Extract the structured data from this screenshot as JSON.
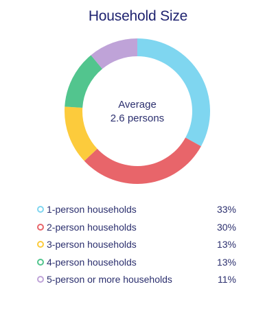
{
  "chart_data": {
    "type": "pie",
    "title": "Household Size",
    "center_label_line1": "Average",
    "center_label_line2": "2.6 persons",
    "slices": [
      {
        "label": "1-person households",
        "value": 33,
        "display": "33%",
        "color": "#7fd6f0"
      },
      {
        "label": "2-person households",
        "value": 30,
        "display": "30%",
        "color": "#e8656a"
      },
      {
        "label": "3-person households",
        "value": 13,
        "display": "13%",
        "color": "#fccb3c"
      },
      {
        "label": "4-person households",
        "value": 13,
        "display": "13%",
        "color": "#52c58e"
      },
      {
        "label": "5-person or more households",
        "value": 11,
        "display": "11%",
        "color": "#bfa3d8"
      }
    ]
  }
}
